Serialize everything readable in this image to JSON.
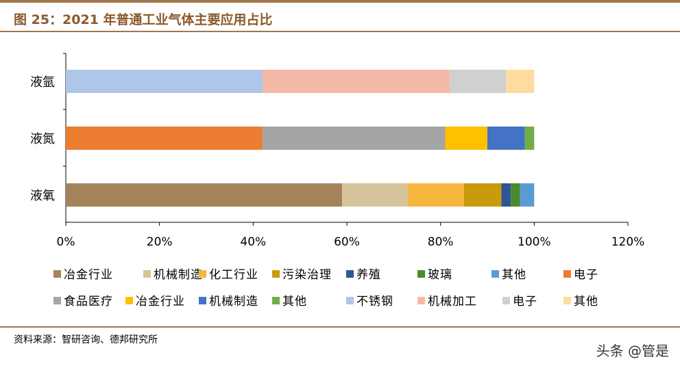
{
  "title": "图 25：2021 年普通工业气体主要应用占比",
  "source": "资料来源：智研咨询、德邦研究所",
  "watermark": "头条 @管是",
  "chart_data": {
    "type": "bar",
    "orientation": "horizontal",
    "stacked": true,
    "categories": [
      "液氩",
      "液氮",
      "液氧"
    ],
    "xlim": [
      0,
      120
    ],
    "xticks": [
      "0%",
      "20%",
      "40%",
      "60%",
      "80%",
      "100%",
      "120%"
    ],
    "grid": false,
    "legend_position": "bottom",
    "series": [
      {
        "name": "冶金行业",
        "category": "液氧",
        "value": 59,
        "color": "#A5835A"
      },
      {
        "name": "机械制造",
        "category": "液氧",
        "value": 14,
        "color": "#D5C49B"
      },
      {
        "name": "化工行业",
        "category": "液氧",
        "value": 12,
        "color": "#F4B63C"
      },
      {
        "name": "污染治理",
        "category": "液氧",
        "value": 8,
        "color": "#C89A0C"
      },
      {
        "name": "养殖",
        "category": "液氧",
        "value": 2,
        "color": "#2E5597"
      },
      {
        "name": "玻璃",
        "category": "液氧",
        "value": 2,
        "color": "#4A8A2E"
      },
      {
        "name": "其他",
        "category": "液氧",
        "value": 3,
        "color": "#5B9BD5"
      },
      {
        "name": "电子",
        "category": "液氮",
        "value": 42,
        "color": "#ED7D31"
      },
      {
        "name": "食品医疗",
        "category": "液氮",
        "value": 39,
        "color": "#A5A5A5"
      },
      {
        "name": "冶金行业",
        "category": "液氮",
        "value": 9,
        "color": "#FFC000"
      },
      {
        "name": "机械制造",
        "category": "液氮",
        "value": 8,
        "color": "#4472C4"
      },
      {
        "name": "其他",
        "category": "液氮",
        "value": 2,
        "color": "#70AD47"
      },
      {
        "name": "不锈钢",
        "category": "液氩",
        "value": 42,
        "color": "#AEC6E8"
      },
      {
        "name": "机械加工",
        "category": "液氩",
        "value": 40,
        "color": "#F4B9A6"
      },
      {
        "name": "电子",
        "category": "液氩",
        "value": 12,
        "color": "#D0D0D0"
      },
      {
        "name": "其他",
        "category": "液氩",
        "value": 6,
        "color": "#FFDB9E"
      }
    ]
  }
}
